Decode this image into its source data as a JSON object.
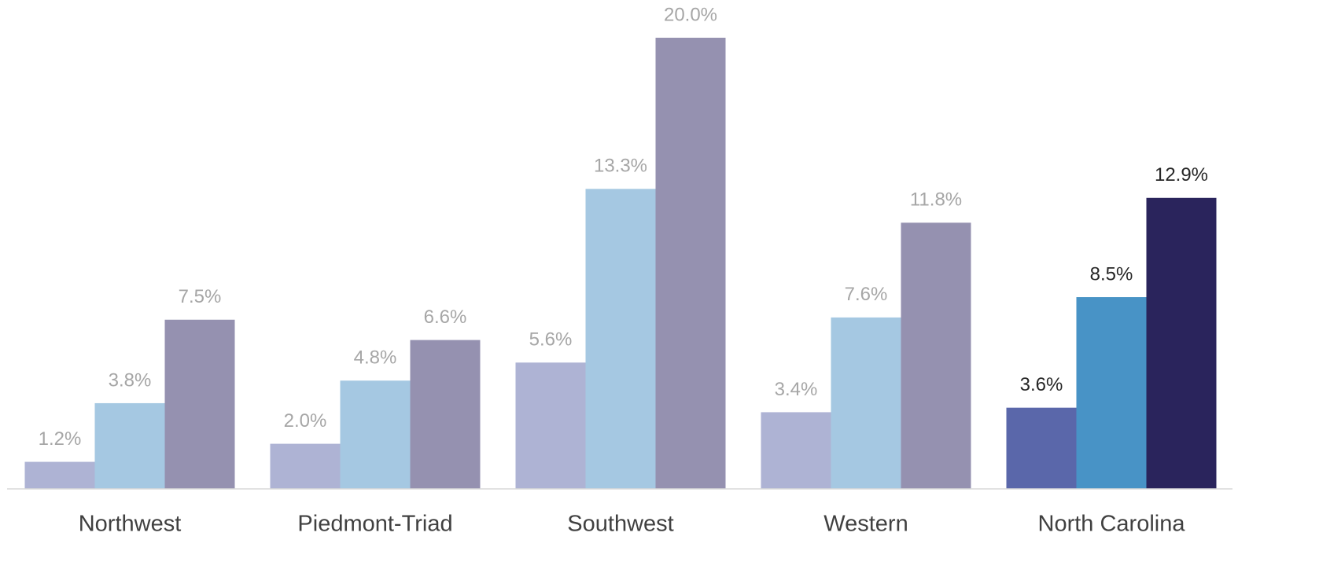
{
  "chart_data": {
    "type": "bar",
    "categories": [
      "Northwest",
      "Piedmont-Triad",
      "Southwest",
      "Western",
      "North Carolina"
    ],
    "series": [
      {
        "colors": [
          "#aeb3d4",
          "#aeb3d4",
          "#aeb3d4",
          "#aeb3d4",
          "#5a67aa"
        ],
        "values": [
          1.2,
          2.0,
          5.6,
          3.4,
          3.6
        ],
        "value_labels": [
          "1.2%",
          "2.0%",
          "5.6%",
          "3.4%",
          "3.6%"
        ]
      },
      {
        "colors": [
          "#a5c8e2",
          "#a5c8e2",
          "#a5c8e2",
          "#a5c8e2",
          "#4893c6"
        ],
        "values": [
          3.8,
          4.8,
          13.3,
          7.6,
          8.5
        ],
        "value_labels": [
          "3.8%",
          "4.8%",
          "13.3%",
          "7.6%",
          "8.5%"
        ]
      },
      {
        "colors": [
          "#9591b0",
          "#9591b0",
          "#9591b0",
          "#9591b0",
          "#2a245c"
        ],
        "values": [
          7.5,
          6.6,
          20.0,
          11.8,
          12.9
        ],
        "value_labels": [
          "7.5%",
          "6.6%",
          "20.0%",
          "11.8%",
          "12.9%"
        ]
      }
    ],
    "value_label_colors": [
      "#a6a6a6",
      "#a6a6a6",
      "#a6a6a6",
      "#a6a6a6",
      "#262626"
    ],
    "ylim": [
      0,
      20
    ]
  }
}
